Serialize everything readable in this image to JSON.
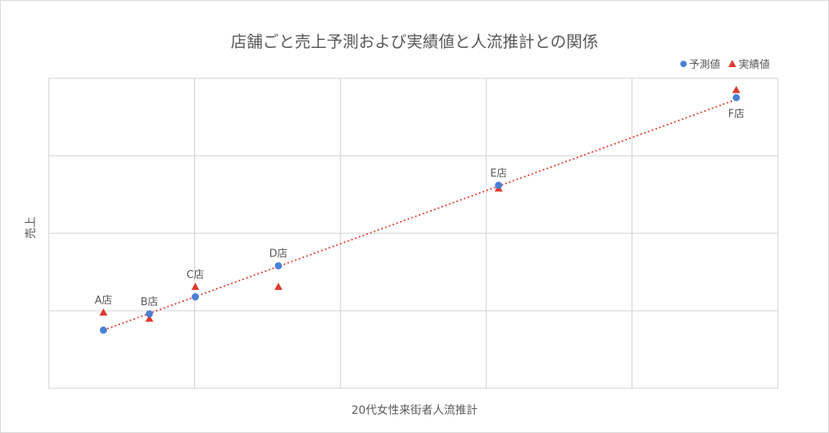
{
  "chart_data": {
    "type": "scatter",
    "title": "店舗ごと売上予測および実績値と人流推計との関係",
    "xlabel": "20代女性来街者人流推計",
    "ylabel": "売上",
    "xlim": [
      0,
      10
    ],
    "ylim": [
      0,
      4
    ],
    "grid": true,
    "legend_position": "top-right",
    "trendline": {
      "style": "dotted",
      "color": "#e03a2e",
      "from": [
        0.75,
        0.75
      ],
      "to": [
        9.5,
        3.75
      ]
    },
    "series": [
      {
        "name": "予測値",
        "marker": "circle",
        "color": "#4a7fd8",
        "points": [
          {
            "label": "A店",
            "x": 0.75,
            "y": 0.75
          },
          {
            "label": "B店",
            "x": 1.38,
            "y": 0.96
          },
          {
            "label": "C店",
            "x": 2.01,
            "y": 1.18
          },
          {
            "label": "D店",
            "x": 3.15,
            "y": 1.58
          },
          {
            "label": "E店",
            "x": 6.17,
            "y": 2.62
          },
          {
            "label": "F店",
            "x": 9.43,
            "y": 3.75
          }
        ]
      },
      {
        "name": "実績値",
        "marker": "triangle",
        "color": "#e03a2e",
        "points": [
          {
            "label": "A店",
            "x": 0.75,
            "y": 0.98
          },
          {
            "label": "B店",
            "x": 1.38,
            "y": 0.9
          },
          {
            "label": "C店",
            "x": 2.01,
            "y": 1.31
          },
          {
            "label": "D店",
            "x": 3.15,
            "y": 1.31
          },
          {
            "label": "E店",
            "x": 6.17,
            "y": 2.58
          },
          {
            "label": "F店",
            "x": 9.43,
            "y": 3.85
          }
        ]
      }
    ]
  }
}
